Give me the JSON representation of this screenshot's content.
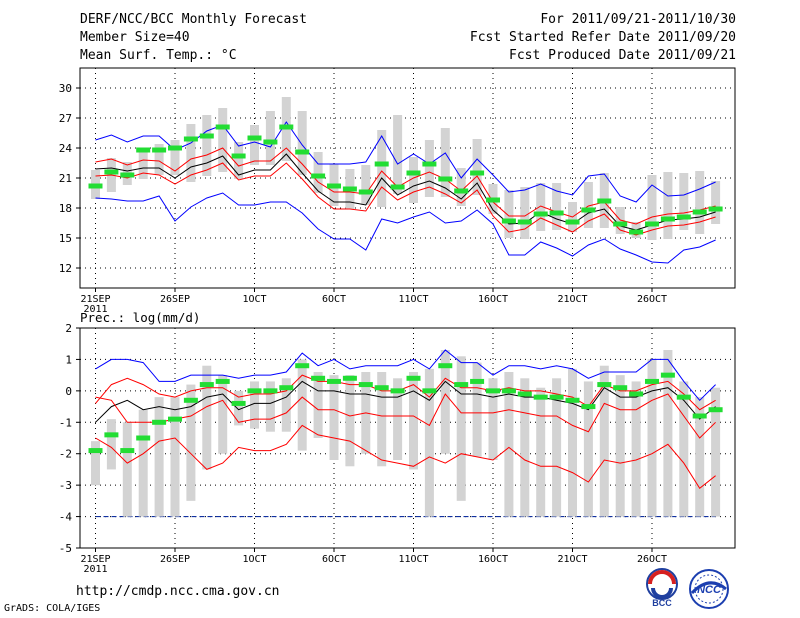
{
  "header": {
    "title": "DERF/NCC/BCC Monthly Forecast",
    "member_size": "Member Size=40",
    "variable": "Mean Surf. Temp.: °C",
    "period": "For 2011/09/21-2011/10/30",
    "started": "Fcst Started Refer Date 2011/09/20",
    "produced": "Fcst Produced Date 2011/09/21"
  },
  "footer": {
    "url": "http://cmdp.ncc.cma.gov.cn",
    "credit": "GrADS: COLA/IGES"
  },
  "logos": {
    "bcc": "BCC",
    "ncc": "NCC"
  },
  "colors": {
    "envelope_outer": "#0000ff",
    "envelope_inner": "#ff0000",
    "mean": "#000000",
    "bar": "#d3d3d3",
    "marker": "#22dd33"
  },
  "chart_data": [
    {
      "type": "line",
      "title": "Mean Surf. Temp.: °C",
      "days": 40,
      "ylim": [
        10,
        32
      ],
      "yticks": [
        12,
        15,
        18,
        21,
        24,
        27,
        30
      ],
      "xticks": [
        {
          "day": 0,
          "label": "21SEP",
          "sub": "2011"
        },
        {
          "day": 5,
          "label": "26SEP"
        },
        {
          "day": 10,
          "label": "1OCT"
        },
        {
          "day": 15,
          "label": "6OCT"
        },
        {
          "day": 20,
          "label": "11OCT"
        },
        {
          "day": 25,
          "label": "16OCT"
        },
        {
          "day": 30,
          "label": "21OCT"
        },
        {
          "day": 35,
          "label": "26OCT"
        }
      ],
      "bar_low": [
        18.9,
        19.6,
        20.3,
        20.9,
        21.3,
        21.3,
        20.6,
        21.2,
        21.6,
        20.9,
        22.3,
        22.3,
        22.7,
        21.3,
        19.5,
        18.2,
        17.9,
        18.3,
        18.1,
        19.4,
        18.5,
        19.1,
        19.1,
        18.2,
        19.3,
        17.4,
        15.0,
        14.9,
        15.7,
        15.8,
        15.6,
        16.0,
        16.0,
        15.4,
        15.0,
        14.8,
        14.9,
        15.8,
        15.4,
        16.4
      ],
      "bar_high": [
        21.8,
        23.0,
        22.6,
        23.7,
        24.4,
        24.8,
        26.4,
        27.3,
        28.0,
        24.6,
        26.3,
        27.7,
        29.1,
        27.7,
        23.6,
        22.4,
        21.9,
        22.3,
        25.8,
        27.3,
        23.1,
        24.8,
        26.0,
        22.0,
        24.9,
        20.4,
        19.8,
        20.1,
        20.5,
        20.5,
        18.6,
        20.6,
        21.5,
        18.1,
        16.6,
        21.3,
        21.6,
        21.5,
        21.7,
        20.7
      ],
      "marker": [
        20.2,
        21.6,
        21.3,
        23.8,
        23.8,
        24.0,
        24.9,
        25.2,
        26.1,
        23.2,
        25.0,
        24.6,
        26.1,
        23.6,
        21.2,
        20.2,
        19.9,
        19.6,
        22.4,
        20.1,
        21.5,
        22.4,
        20.9,
        19.7,
        21.5,
        18.8,
        16.7,
        16.6,
        17.4,
        17.5,
        16.6,
        17.8,
        18.7,
        16.4,
        15.6,
        16.4,
        16.9,
        17.1,
        17.6,
        17.9
      ],
      "series": [
        {
          "name": "max",
          "color": "#0000ff",
          "values": [
            24.8,
            25.3,
            24.6,
            25.2,
            25.2,
            23.8,
            24.5,
            25.7,
            26.3,
            24.2,
            24.6,
            24.1,
            26.6,
            24.3,
            22.4,
            22.4,
            22.4,
            22.6,
            25.2,
            22.4,
            23.4,
            22.4,
            23.5,
            21.0,
            22.9,
            21.3,
            19.6,
            19.8,
            20.4,
            19.7,
            19.3,
            21.2,
            21.4,
            19.2,
            18.6,
            20.3,
            19.2,
            19.3,
            19.9,
            20.6
          ]
        },
        {
          "name": "upper",
          "color": "#ff0000",
          "values": [
            22.6,
            22.9,
            22.3,
            22.8,
            22.7,
            21.7,
            22.9,
            23.3,
            24.0,
            22.2,
            22.7,
            22.7,
            24.0,
            22.4,
            20.6,
            19.6,
            19.6,
            19.4,
            21.7,
            20.1,
            21.0,
            21.6,
            20.9,
            19.7,
            21.2,
            18.6,
            17.2,
            17.2,
            18.2,
            17.6,
            17.1,
            18.2,
            18.6,
            16.8,
            16.4,
            17.1,
            17.4,
            17.5,
            17.8,
            18.2
          ]
        },
        {
          "name": "mean",
          "color": "#000000",
          "values": [
            21.9,
            22.0,
            21.7,
            22.0,
            22.0,
            21.0,
            22.1,
            22.5,
            23.2,
            21.3,
            21.8,
            21.8,
            23.4,
            21.5,
            19.7,
            18.6,
            18.6,
            18.3,
            21.0,
            19.3,
            20.2,
            20.7,
            20.0,
            18.9,
            20.5,
            17.8,
            16.4,
            16.5,
            17.6,
            16.9,
            16.4,
            17.5,
            17.9,
            16.2,
            15.8,
            16.3,
            16.8,
            16.9,
            17.1,
            17.6
          ]
        },
        {
          "name": "lower",
          "color": "#ff0000",
          "values": [
            21.2,
            21.3,
            21.0,
            21.5,
            21.3,
            20.4,
            21.3,
            21.8,
            22.5,
            20.8,
            21.2,
            21.2,
            22.5,
            20.9,
            19.1,
            17.9,
            17.9,
            17.7,
            20.1,
            18.8,
            19.6,
            20.1,
            19.4,
            18.5,
            19.8,
            17.2,
            15.6,
            15.9,
            17.0,
            16.3,
            15.6,
            16.7,
            17.4,
            15.8,
            15.3,
            15.8,
            16.2,
            16.3,
            16.6,
            17.1
          ]
        },
        {
          "name": "min",
          "color": "#0000ff",
          "values": [
            19.0,
            18.9,
            18.7,
            18.7,
            19.2,
            16.7,
            18.1,
            19.0,
            19.5,
            18.3,
            18.3,
            18.6,
            18.6,
            17.5,
            15.9,
            14.9,
            14.9,
            13.8,
            16.9,
            16.5,
            17.1,
            17.6,
            16.5,
            16.7,
            17.8,
            16.4,
            13.3,
            13.3,
            14.6,
            14.0,
            13.2,
            14.3,
            14.9,
            13.9,
            13.3,
            12.6,
            12.5,
            13.8,
            14.1,
            14.8
          ]
        }
      ]
    },
    {
      "type": "line",
      "title": "Prec.: log(mm/d)",
      "days": 40,
      "ylim": [
        -5,
        2
      ],
      "yticks": [
        -5,
        -4,
        -3,
        -2,
        -1,
        0,
        1,
        2
      ],
      "baseline": -4,
      "xticks": [
        {
          "day": 0,
          "label": "21SEP",
          "sub": "2011"
        },
        {
          "day": 5,
          "label": "26SEP"
        },
        {
          "day": 10,
          "label": "1OCT"
        },
        {
          "day": 15,
          "label": "6OCT"
        },
        {
          "day": 20,
          "label": "11OCT"
        },
        {
          "day": 25,
          "label": "16OCT"
        },
        {
          "day": 30,
          "label": "21OCT"
        },
        {
          "day": 35,
          "label": "26OCT"
        }
      ],
      "bar_low": [
        -3.0,
        -2.5,
        -4.0,
        -4.0,
        -4.0,
        -4.0,
        -3.5,
        -2.5,
        -2.0,
        -1.1,
        -1.2,
        -1.3,
        -1.3,
        -1.9,
        -1.5,
        -2.2,
        -2.4,
        -2.0,
        -2.4,
        -2.2,
        -2.5,
        -4.0,
        -2.0,
        -3.5,
        -2.1,
        -2.2,
        -4.0,
        -4.0,
        -4.0,
        -4.0,
        -4.0,
        -4.0,
        -4.0,
        -4.0,
        -4.0,
        -4.0,
        -4.0,
        -4.0,
        -4.0,
        -4.0
      ],
      "bar_high": [
        -1.6,
        -0.9,
        -1.0,
        -0.6,
        -0.2,
        -0.2,
        0.2,
        0.8,
        0.5,
        0.0,
        0.3,
        0.3,
        0.4,
        1.0,
        0.6,
        0.5,
        0.5,
        0.6,
        0.6,
        0.4,
        0.6,
        0.7,
        1.3,
        1.1,
        0.9,
        0.4,
        0.6,
        0.4,
        0.1,
        0.4,
        0.7,
        0.3,
        0.8,
        0.5,
        0.3,
        1.0,
        1.3,
        0.3,
        -0.2,
        0.1
      ],
      "marker": [
        -1.9,
        -1.4,
        -1.9,
        -1.5,
        -1.0,
        -0.9,
        -0.3,
        0.2,
        0.3,
        -0.4,
        0.0,
        0.0,
        0.1,
        0.8,
        0.4,
        0.3,
        0.4,
        0.2,
        0.1,
        0.0,
        0.4,
        0.0,
        0.8,
        0.2,
        0.3,
        0.0,
        0.0,
        -0.1,
        -0.2,
        -0.2,
        -0.3,
        -0.5,
        0.2,
        0.1,
        -0.1,
        0.3,
        0.5,
        -0.2,
        -0.8,
        -0.6
      ],
      "series": [
        {
          "name": "max",
          "color": "#0000ff",
          "values": [
            0.7,
            1.0,
            1.0,
            0.9,
            0.3,
            0.3,
            0.5,
            0.5,
            0.5,
            0.4,
            0.5,
            0.5,
            0.6,
            1.2,
            0.8,
            1.0,
            0.7,
            0.8,
            0.8,
            0.8,
            1.0,
            0.7,
            1.3,
            0.9,
            0.9,
            0.5,
            0.8,
            0.8,
            0.7,
            0.8,
            0.7,
            0.4,
            0.6,
            0.6,
            0.6,
            1.0,
            1.0,
            0.3,
            -0.3,
            0.2
          ]
        },
        {
          "name": "upper",
          "color": "#ff0000",
          "values": [
            -0.4,
            0.2,
            0.4,
            0.2,
            -0.1,
            -0.2,
            0.0,
            0.1,
            0.1,
            -0.2,
            -0.1,
            -0.1,
            0.0,
            0.5,
            0.3,
            0.3,
            0.2,
            0.2,
            0.0,
            0.0,
            0.2,
            -0.2,
            0.4,
            0.1,
            0.1,
            0.0,
            0.1,
            0.0,
            0.0,
            -0.1,
            -0.2,
            -0.5,
            0.2,
            0.0,
            0.0,
            0.2,
            0.3,
            -0.1,
            -0.6,
            -0.3
          ]
        },
        {
          "name": "mean",
          "color": "#000000",
          "values": [
            -1.0,
            -0.5,
            -0.3,
            -0.6,
            -0.5,
            -0.6,
            -0.5,
            -0.2,
            -0.1,
            -0.6,
            -0.4,
            -0.4,
            -0.2,
            0.3,
            0.0,
            0.0,
            -0.1,
            -0.1,
            -0.2,
            -0.2,
            0.0,
            -0.3,
            0.3,
            -0.1,
            -0.1,
            -0.2,
            -0.1,
            -0.2,
            -0.2,
            -0.3,
            -0.4,
            -0.6,
            0.1,
            -0.2,
            -0.2,
            0.0,
            0.1,
            -0.3,
            -0.9,
            -0.5
          ]
        },
        {
          "name": "lower",
          "color": "#ff0000",
          "values": [
            -0.2,
            -0.3,
            -1.0,
            -1.0,
            -1.0,
            -0.9,
            -0.8,
            -0.5,
            -0.3,
            -1.0,
            -0.9,
            -0.9,
            -0.7,
            -0.2,
            -0.6,
            -0.6,
            -0.8,
            -0.7,
            -0.8,
            -0.8,
            -0.8,
            -1.1,
            -0.1,
            -0.7,
            -0.7,
            -0.7,
            -0.6,
            -0.7,
            -0.8,
            -0.8,
            -1.1,
            -1.3,
            -0.4,
            -0.6,
            -0.6,
            -0.3,
            -0.1,
            -0.8,
            -1.5,
            -1.0
          ]
        },
        {
          "name": "min",
          "color": "#ff0000",
          "values": [
            -1.5,
            -1.8,
            -2.3,
            -2.0,
            -1.6,
            -1.5,
            -2.0,
            -2.5,
            -2.3,
            -1.8,
            -1.9,
            -1.9,
            -1.7,
            -1.1,
            -1.4,
            -1.5,
            -1.6,
            -1.9,
            -2.2,
            -2.3,
            -2.4,
            -2.1,
            -2.3,
            -2.0,
            -2.1,
            -2.2,
            -1.8,
            -2.2,
            -2.4,
            -2.4,
            -2.6,
            -2.9,
            -2.2,
            -2.3,
            -2.2,
            -2.0,
            -1.7,
            -2.3,
            -3.1,
            -2.7
          ]
        }
      ]
    }
  ]
}
